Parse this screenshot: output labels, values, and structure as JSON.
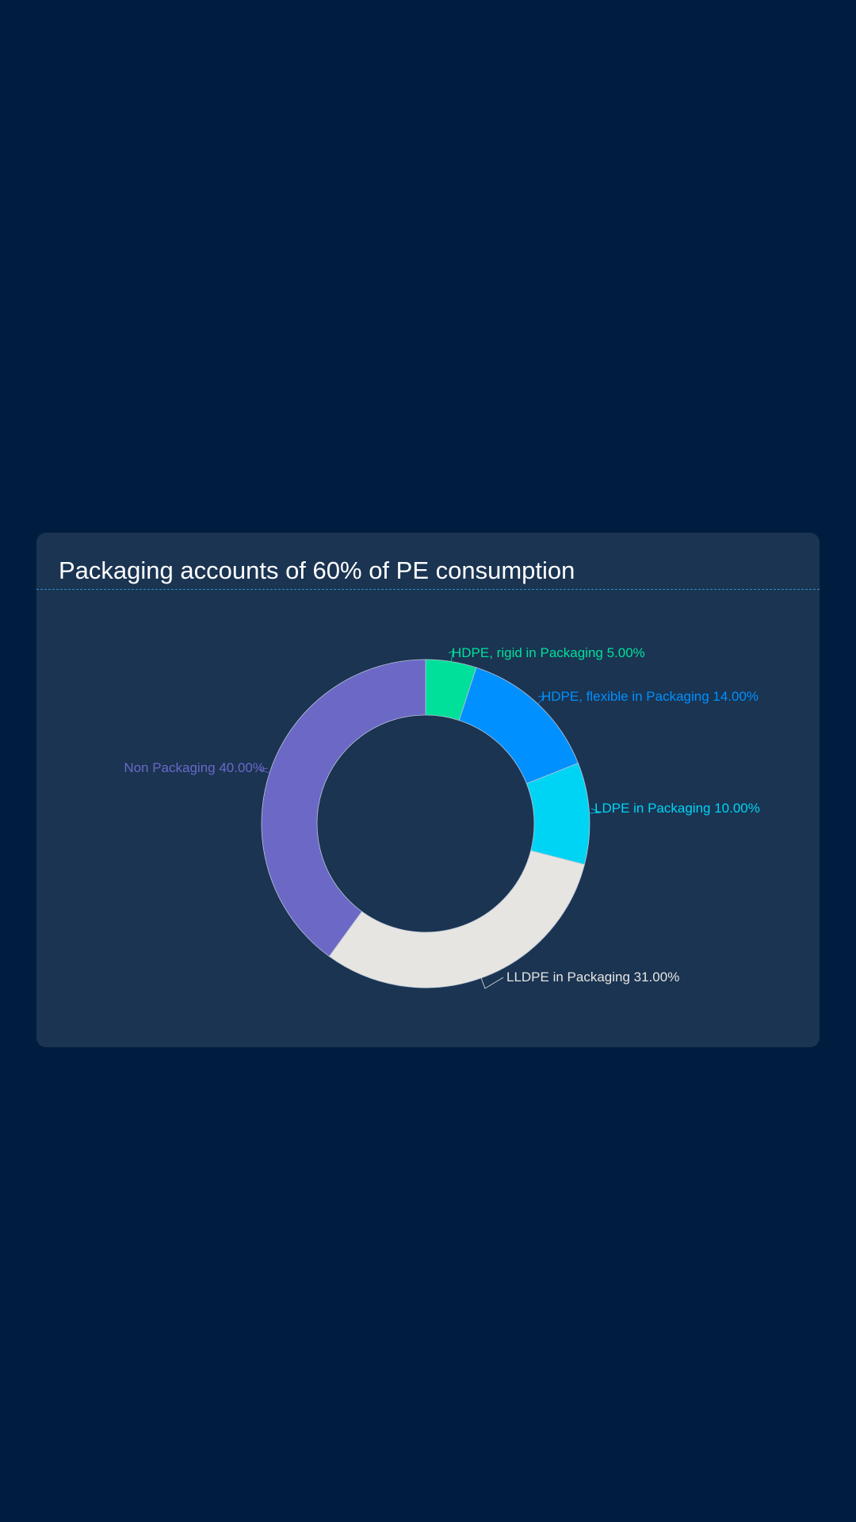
{
  "card": {
    "title": "Packaging accounts of 60% of PE consumption"
  },
  "chart_data": {
    "type": "pie",
    "style": "donut",
    "title": "Packaging accounts of 60% of PE consumption",
    "legend": "none",
    "slices": [
      {
        "label": "HDPE, rigid in Packaging",
        "value": 5.0,
        "display": "HDPE, rigid in Packaging 5.00%",
        "color": "#00e09a"
      },
      {
        "label": "HDPE, flexible in Packaging",
        "value": 14.0,
        "display": "HDPE, flexible in Packaging 14.00%",
        "color": "#0090ff"
      },
      {
        "label": "LDPE in Packaging",
        "value": 10.0,
        "display": "LDPE in Packaging 10.00%",
        "color": "#00d4f5"
      },
      {
        "label": "LLDPE in Packaging",
        "value": 31.0,
        "display": "LLDPE in Packaging 31.00%",
        "color": "#e6e5e1"
      },
      {
        "label": "Non Packaging",
        "value": 40.0,
        "display": "Non Packaging 40.00%",
        "color": "#6b68c6"
      }
    ]
  }
}
